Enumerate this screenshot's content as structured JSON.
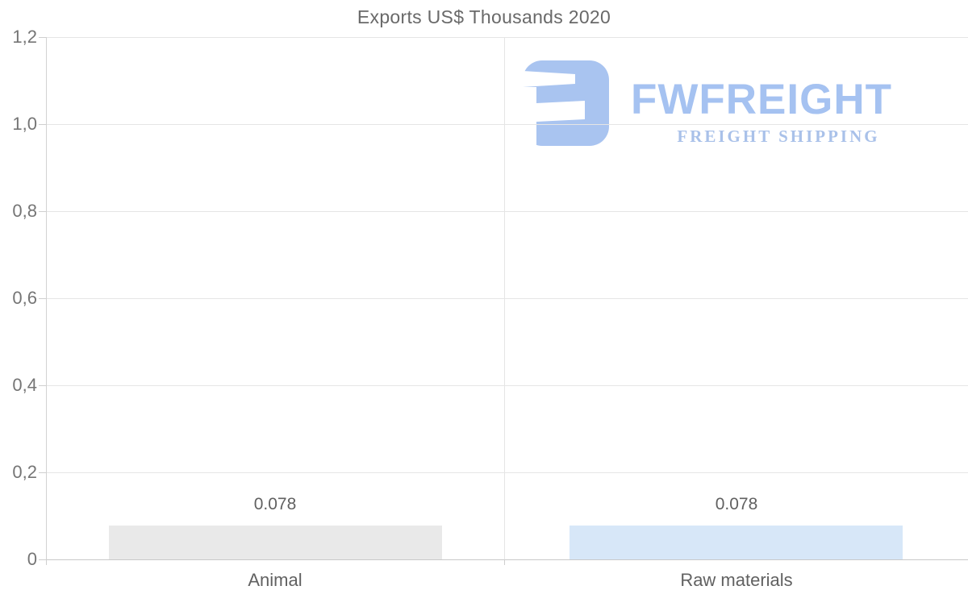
{
  "title": "Exports US$ Thousands 2020",
  "logo": {
    "brand": "FWFREIGHT",
    "tagline": "FREIGHT SHIPPING"
  },
  "chart_data": {
    "type": "bar",
    "title": "Exports US$ Thousands 2020",
    "categories": [
      "Animal",
      "Raw materials"
    ],
    "values": [
      0.078,
      0.078
    ],
    "value_labels": [
      "0.078",
      "0.078"
    ],
    "bar_colors": [
      "#e9e9e9",
      "#d7e7f8"
    ],
    "xlabel": "",
    "ylabel": "",
    "ylim": [
      0,
      1.2
    ],
    "yticks": [
      0,
      0.2,
      0.4,
      0.6,
      0.8,
      1.0,
      1.2
    ],
    "ytick_labels": [
      "0",
      "0,2",
      "0,4",
      "0,6",
      "0,8",
      "1,0",
      "1,2"
    ],
    "grid": "horizontal gridlines + vertical category separator",
    "legend": "none",
    "decimal_separator_axis": ",",
    "decimal_separator_labels": "."
  },
  "colors": {
    "background": "#ffffff",
    "grid": "#e5e5e5",
    "axis": "#c9c9c9",
    "text": "#6e6e6e",
    "logo_blue": "#a9c4f0",
    "logo_tagline_blue": "#a9c1e9",
    "bar_animal": "#e9e9e9",
    "bar_raw_materials": "#d7e7f8"
  }
}
